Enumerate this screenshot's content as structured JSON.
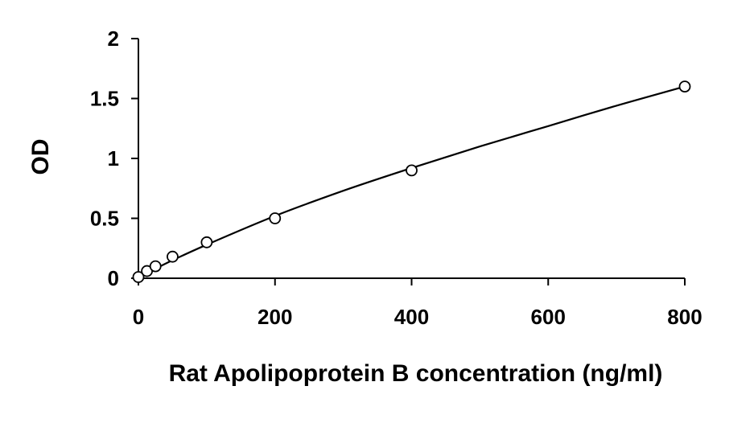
{
  "chart_data": {
    "type": "scatter",
    "title": "",
    "xlabel": "Rat Apolipoprotein B concentration (ng/ml)",
    "ylabel": "OD",
    "xlim": [
      0,
      800
    ],
    "ylim": [
      0,
      2
    ],
    "x_ticks": [
      0,
      200,
      400,
      600,
      800
    ],
    "x_tick_labels": [
      "0",
      "200",
      "400",
      "600",
      "800"
    ],
    "y_ticks": [
      0,
      0.5,
      1,
      1.5,
      2
    ],
    "y_tick_labels": [
      "0",
      "0.5",
      "1",
      "1.5",
      "2"
    ],
    "grid": false,
    "legend": "none",
    "series": [
      {
        "marker": "open-circle",
        "x": [
          0,
          12.5,
          25,
          50,
          100,
          200,
          400,
          800
        ],
        "y": [
          0.01,
          0.06,
          0.1,
          0.18,
          0.3,
          0.5,
          0.9,
          1.6
        ]
      }
    ],
    "fit_line": {
      "style": "smooth-curve",
      "x": [
        0,
        12.5,
        25,
        50,
        100,
        200,
        300,
        400,
        500,
        600,
        700,
        800
      ],
      "y": [
        0.01,
        0.045,
        0.08,
        0.15,
        0.28,
        0.52,
        0.73,
        0.92,
        1.1,
        1.27,
        1.44,
        1.6
      ]
    },
    "colors": {
      "axis": "#000000",
      "marker_stroke": "#000000",
      "line": "#000000"
    }
  }
}
